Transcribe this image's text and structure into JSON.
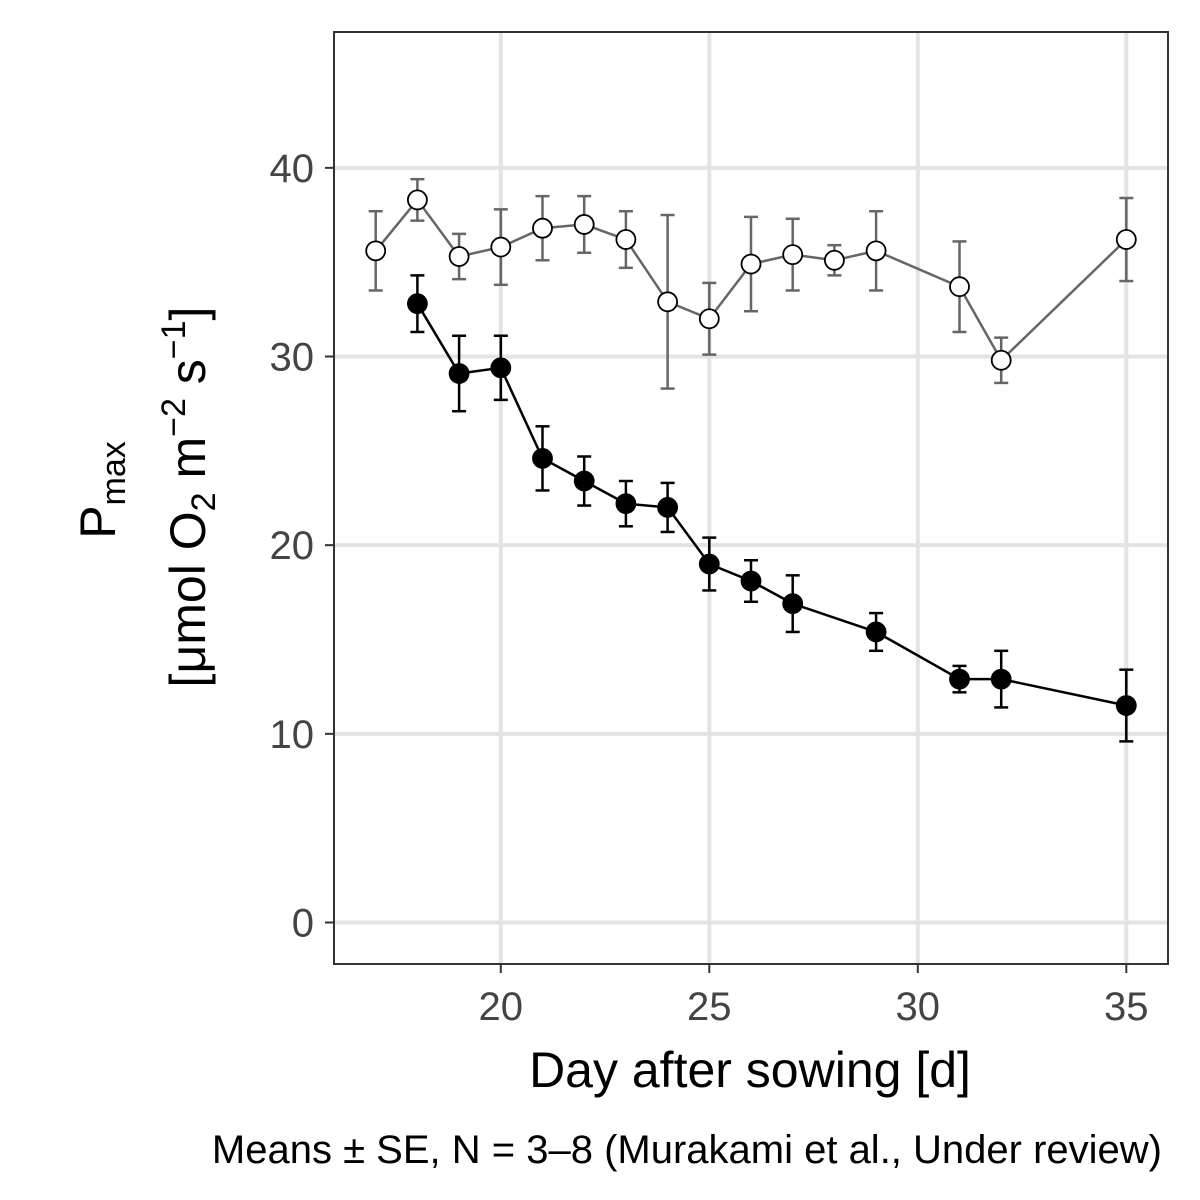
{
  "chart_data": {
    "type": "scatter",
    "xlabel": "Day after sowing [d]",
    "ylabel": {
      "line1_main": "P",
      "line1_sub": "max",
      "line2_a": "[μmol O",
      "line2_sub": "2",
      "line2_b": " m",
      "line2_sup1": "−2",
      "line2_c": " s",
      "line2_sup2": "−1",
      "line2_d": "]"
    },
    "caption": "Means ± SE, N = 3–8 (Murakami et al., Under review)",
    "xlim": [
      16,
      36
    ],
    "ylim": [
      -2.2,
      47.2
    ],
    "xticks": [
      20,
      25,
      30,
      35
    ],
    "yticks": [
      0,
      10,
      20,
      30,
      40
    ],
    "grid": true,
    "series": [
      {
        "marker": "open-circle",
        "line_color": "#666666",
        "points": [
          {
            "x": 17,
            "y": 35.6,
            "err": 2.1
          },
          {
            "x": 18,
            "y": 38.3,
            "err": 1.1
          },
          {
            "x": 19,
            "y": 35.3,
            "err": 1.2
          },
          {
            "x": 20,
            "y": 35.8,
            "err": 2.0
          },
          {
            "x": 21,
            "y": 36.8,
            "err": 1.7
          },
          {
            "x": 22,
            "y": 37.0,
            "err": 1.5
          },
          {
            "x": 23,
            "y": 36.2,
            "err": 1.5
          },
          {
            "x": 24,
            "y": 32.9,
            "err": 4.6
          },
          {
            "x": 25,
            "y": 32.0,
            "err": 1.9
          },
          {
            "x": 26,
            "y": 34.9,
            "err": 2.5
          },
          {
            "x": 27,
            "y": 35.4,
            "err": 1.9
          },
          {
            "x": 28,
            "y": 35.1,
            "err": 0.8
          },
          {
            "x": 29,
            "y": 35.6,
            "err": 2.1
          },
          {
            "x": 31,
            "y": 33.7,
            "err": 2.4
          },
          {
            "x": 32,
            "y": 29.8,
            "err": 1.2
          },
          {
            "x": 35,
            "y": 36.2,
            "err": 2.2
          }
        ]
      },
      {
        "marker": "filled-circle",
        "line_color": "#000000",
        "points": [
          {
            "x": 18,
            "y": 32.8,
            "err": 1.5
          },
          {
            "x": 19,
            "y": 29.1,
            "err": 2.0
          },
          {
            "x": 20,
            "y": 29.4,
            "err": 1.7
          },
          {
            "x": 21,
            "y": 24.6,
            "err": 1.7
          },
          {
            "x": 22,
            "y": 23.4,
            "err": 1.3
          },
          {
            "x": 23,
            "y": 22.2,
            "err": 1.2
          },
          {
            "x": 24,
            "y": 22.0,
            "err": 1.3
          },
          {
            "x": 25,
            "y": 19.0,
            "err": 1.4
          },
          {
            "x": 26,
            "y": 18.1,
            "err": 1.1
          },
          {
            "x": 27,
            "y": 16.9,
            "err": 1.5
          },
          {
            "x": 29,
            "y": 15.4,
            "err": 1.0
          },
          {
            "x": 31,
            "y": 12.9,
            "err": 0.7
          },
          {
            "x": 32,
            "y": 12.9,
            "err": 1.5
          },
          {
            "x": 35,
            "y": 11.5,
            "err": 1.9
          }
        ]
      }
    ]
  }
}
